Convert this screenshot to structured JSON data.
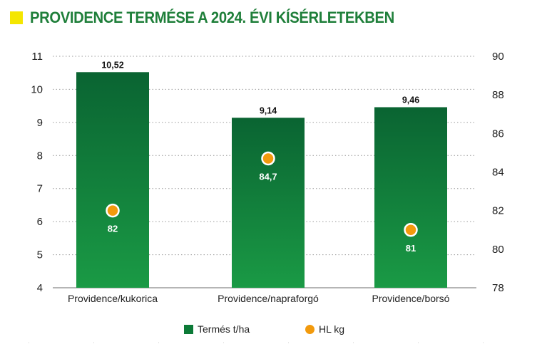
{
  "title": "PROVIDENCE TERMÉSE A 2024. ÉVI KÍSÉRLETEKBEN",
  "colors": {
    "accent_square": "#f4e600",
    "title": "#1f7f3a",
    "bar_top": "#0a6432",
    "bar_bottom": "#1a9a45",
    "dot_fill": "#f29a0d",
    "dot_stroke": "#ffffff"
  },
  "chart_data": {
    "type": "bar",
    "categories": [
      "Providence/kukorica",
      "Providence/napraforgó",
      "Providence/borsó"
    ],
    "series": [
      {
        "name": "Termés t/ha",
        "type": "bar",
        "axis": "left",
        "values": [
          10.52,
          9.14,
          9.46
        ],
        "labels": [
          "10,52",
          "9,14",
          "9,46"
        ]
      },
      {
        "name": "HL kg",
        "type": "scatter",
        "axis": "right",
        "values": [
          82,
          84.7,
          81
        ],
        "labels": [
          "82",
          "84,7",
          "81"
        ]
      }
    ],
    "y_left": {
      "min": 4,
      "max": 11,
      "ticks": [
        "4",
        "5",
        "6",
        "7",
        "8",
        "9",
        "10",
        "11"
      ]
    },
    "y_right": {
      "min": 78,
      "max": 90,
      "ticks": [
        "78",
        "80",
        "82",
        "84",
        "86",
        "88",
        "90"
      ]
    },
    "grid": "dotted horizontal",
    "legend_position": "bottom"
  },
  "legend": {
    "bar_label": "Termés t/ha",
    "dot_label": "HL kg"
  }
}
